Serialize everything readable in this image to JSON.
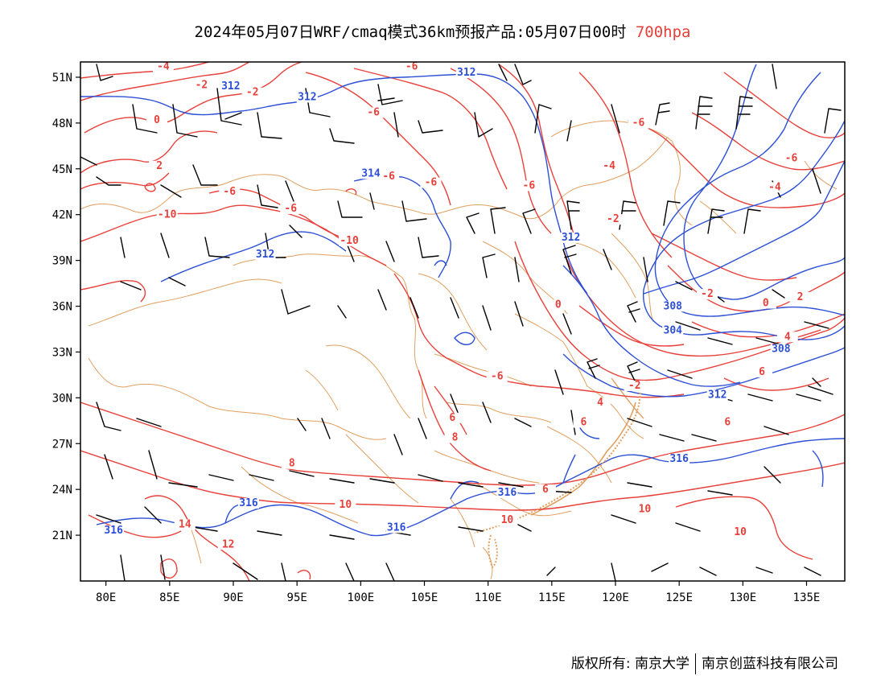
{
  "title": {
    "main": "2024年05月07日WRF/cmaq模式36km预报产品:05月07日00时",
    "level": "700hpa"
  },
  "colors": {
    "temperature": "#e8403a",
    "height": "#2c4fd6",
    "border": "#e0a060",
    "barb": "#000000"
  },
  "map": {
    "lon_range": [
      78,
      138
    ],
    "lat_range": [
      18,
      52
    ],
    "lon_ticks": [
      "80E",
      "85E",
      "90E",
      "95E",
      "100E",
      "105E",
      "110E",
      "115E",
      "120E",
      "125E",
      "130E",
      "135E"
    ],
    "lon_tick_values": [
      80,
      85,
      90,
      95,
      100,
      105,
      110,
      115,
      120,
      125,
      130,
      135
    ],
    "lat_ticks": [
      "51N",
      "48N",
      "45N",
      "42N",
      "39N",
      "36N",
      "33N",
      "30N",
      "27N",
      "24N",
      "21N"
    ],
    "lat_tick_values": [
      51,
      48,
      45,
      42,
      39,
      36,
      33,
      30,
      27,
      24,
      21
    ]
  },
  "temperature_labels": [
    {
      "text": "-4",
      "lon": 84.5,
      "lat": 51.5
    },
    {
      "text": "-2",
      "lon": 87.5,
      "lat": 50.3
    },
    {
      "text": "-2",
      "lon": 91.5,
      "lat": 49.8
    },
    {
      "text": "0",
      "lon": 84.0,
      "lat": 48.0
    },
    {
      "text": "-6",
      "lon": 101,
      "lat": 48.5
    },
    {
      "text": "-6",
      "lon": 104,
      "lat": 51.5
    },
    {
      "text": "2",
      "lon": 84.2,
      "lat": 45.0
    },
    {
      "text": "-6",
      "lon": 89.7,
      "lat": 43.3
    },
    {
      "text": "-6",
      "lon": 94.5,
      "lat": 42.2
    },
    {
      "text": "-6",
      "lon": 105.5,
      "lat": 43.9
    },
    {
      "text": "-6",
      "lon": 102.2,
      "lat": 44.3
    },
    {
      "text": "-6",
      "lon": 113.2,
      "lat": 43.7
    },
    {
      "text": "-10",
      "lon": 84.8,
      "lat": 41.8
    },
    {
      "text": "-10",
      "lon": 99.1,
      "lat": 40.1
    },
    {
      "text": "-2",
      "lon": 119.8,
      "lat": 41.5
    },
    {
      "text": "-4",
      "lon": 119.5,
      "lat": 45.0
    },
    {
      "text": "-6",
      "lon": 121.8,
      "lat": 47.8
    },
    {
      "text": "-6",
      "lon": 133.8,
      "lat": 45.5
    },
    {
      "text": "-4",
      "lon": 132.5,
      "lat": 43.6
    },
    {
      "text": "-2",
      "lon": 127.2,
      "lat": 36.6
    },
    {
      "text": "0",
      "lon": 131.8,
      "lat": 36.0
    },
    {
      "text": "2",
      "lon": 134.5,
      "lat": 36.4
    },
    {
      "text": "4",
      "lon": 133.5,
      "lat": 33.8
    },
    {
      "text": "6",
      "lon": 131.5,
      "lat": 31.5
    },
    {
      "text": "6",
      "lon": 128.8,
      "lat": 28.2
    },
    {
      "text": "0",
      "lon": 115.5,
      "lat": 35.9
    },
    {
      "text": "-2",
      "lon": 121.5,
      "lat": 30.6
    },
    {
      "text": "-6",
      "lon": 110.7,
      "lat": 31.2
    },
    {
      "text": "4",
      "lon": 118.8,
      "lat": 29.5
    },
    {
      "text": "6",
      "lon": 117.5,
      "lat": 28.2
    },
    {
      "text": "6",
      "lon": 107.2,
      "lat": 28.5
    },
    {
      "text": "8",
      "lon": 107.4,
      "lat": 27.2
    },
    {
      "text": "8",
      "lon": 94.6,
      "lat": 25.5
    },
    {
      "text": "10",
      "lon": 98.8,
      "lat": 22.8
    },
    {
      "text": "10",
      "lon": 111.5,
      "lat": 21.8
    },
    {
      "text": "10",
      "lon": 122.3,
      "lat": 22.5
    },
    {
      "text": "10",
      "lon": 129.8,
      "lat": 21.0
    },
    {
      "text": "14",
      "lon": 86.2,
      "lat": 21.5
    },
    {
      "text": "12",
      "lon": 89.6,
      "lat": 20.2
    },
    {
      "text": "6",
      "lon": 114.5,
      "lat": 23.8
    }
  ],
  "height_labels": [
    {
      "text": "312",
      "lon": 89.8,
      "lat": 50.2
    },
    {
      "text": "312",
      "lon": 95.8,
      "lat": 49.5
    },
    {
      "text": "312",
      "lon": 108.3,
      "lat": 51.1
    },
    {
      "text": "314",
      "lon": 100.8,
      "lat": 44.5
    },
    {
      "text": "312",
      "lon": 116.5,
      "lat": 40.3
    },
    {
      "text": "312",
      "lon": 92.5,
      "lat": 39.2
    },
    {
      "text": "308",
      "lon": 124.5,
      "lat": 35.8
    },
    {
      "text": "304",
      "lon": 124.5,
      "lat": 34.2
    },
    {
      "text": "308",
      "lon": 133.0,
      "lat": 33.0
    },
    {
      "text": "312",
      "lon": 128.0,
      "lat": 30.0
    },
    {
      "text": "316",
      "lon": 125.0,
      "lat": 25.8
    },
    {
      "text": "316",
      "lon": 111.5,
      "lat": 23.6
    },
    {
      "text": "316",
      "lon": 91.2,
      "lat": 22.9
    },
    {
      "text": "316",
      "lon": 102.8,
      "lat": 21.3
    },
    {
      "text": "316",
      "lon": 80.6,
      "lat": 21.1
    }
  ],
  "copyright": {
    "left": "版权所有: 南京大学",
    "right": "南京创蓝科技有限公司"
  }
}
